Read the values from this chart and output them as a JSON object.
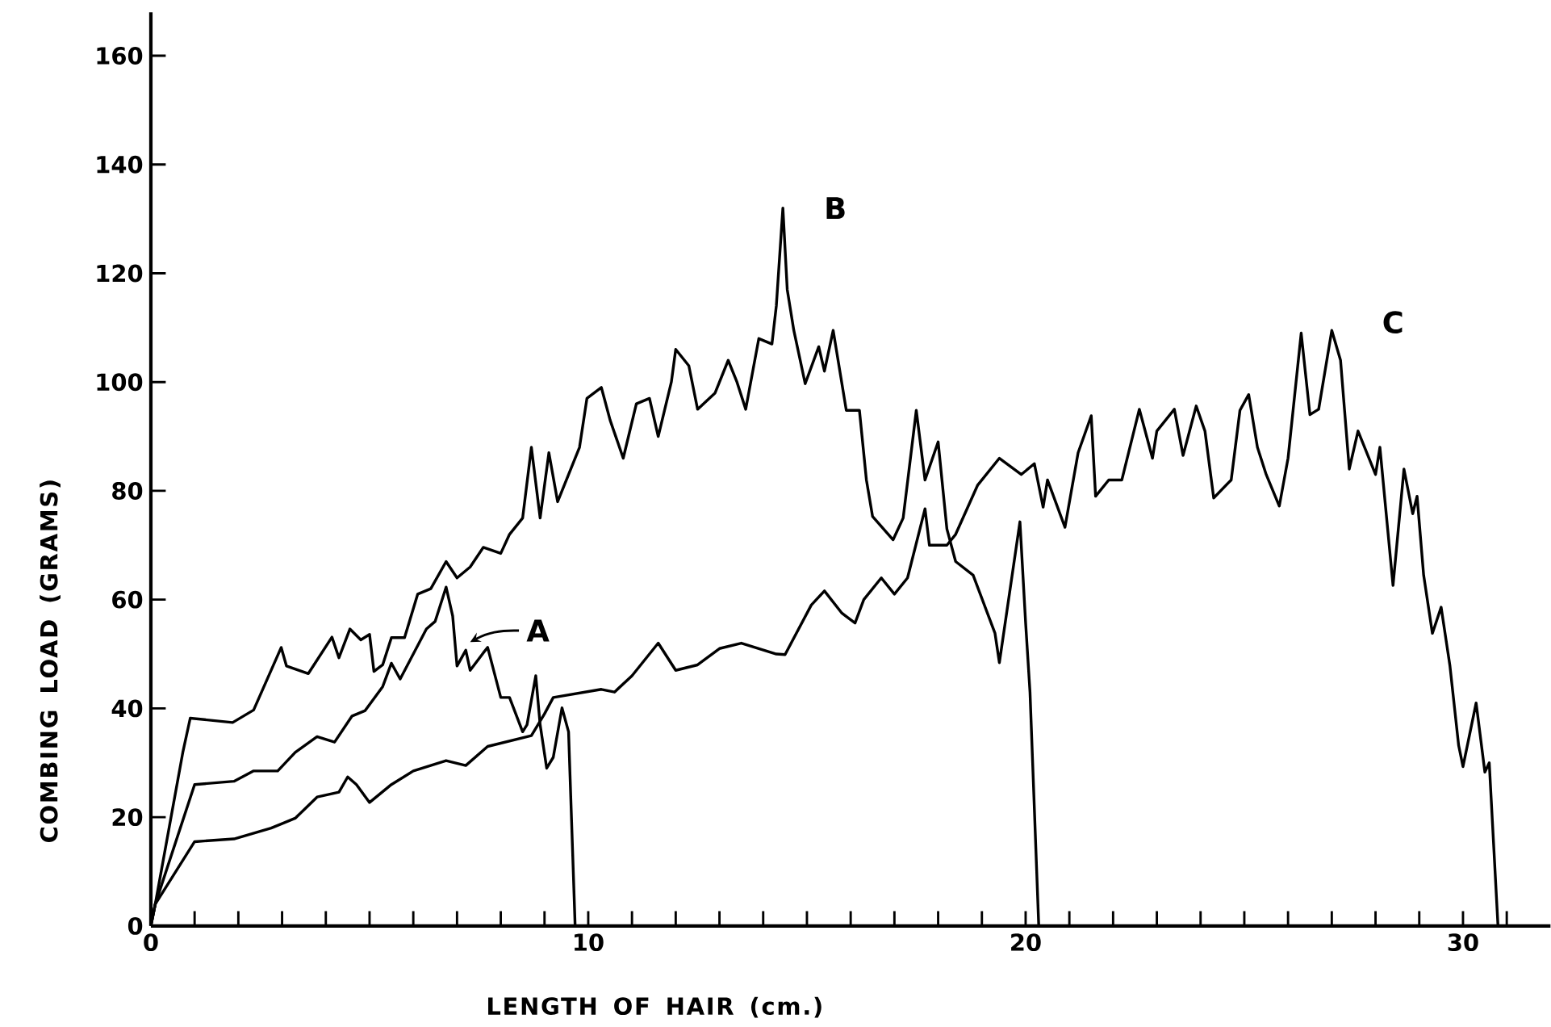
{
  "chart_data": {
    "type": "line",
    "xlabel": "LENGTH OF HAIR (cm.)",
    "ylabel": "COMBING LOAD (GRAMS)",
    "xlim": [
      0,
      32
    ],
    "ylim": [
      0,
      168
    ],
    "xticks": [
      0,
      {
        "value": 1,
        "label": null
      },
      {
        "value": 2,
        "label": null
      },
      {
        "value": 3,
        "label": null
      },
      {
        "value": 4,
        "label": null
      },
      {
        "value": 5,
        "label": null
      },
      {
        "value": 6,
        "label": null
      },
      {
        "value": 7,
        "label": null
      },
      {
        "value": 8,
        "label": null
      },
      {
        "value": 9,
        "label": null
      },
      10,
      {
        "value": 11,
        "label": null
      },
      {
        "value": 12,
        "label": null
      },
      {
        "value": 13,
        "label": null
      },
      {
        "value": 14,
        "label": null
      },
      {
        "value": 15,
        "label": null
      },
      {
        "value": 16,
        "label": null
      },
      {
        "value": 17,
        "label": null
      },
      {
        "value": 18,
        "label": null
      },
      {
        "value": 19,
        "label": null
      },
      20,
      {
        "value": 21,
        "label": null
      },
      {
        "value": 22,
        "label": null
      },
      {
        "value": 23,
        "label": null
      },
      {
        "value": 24,
        "label": null
      },
      {
        "value": 25,
        "label": null
      },
      {
        "value": 26,
        "label": null
      },
      {
        "value": 27,
        "label": null
      },
      {
        "value": 28,
        "label": null
      },
      {
        "value": 29,
        "label": null
      },
      30,
      {
        "value": 31,
        "label": null
      }
    ],
    "yticks": [
      0,
      20,
      40,
      60,
      80,
      100,
      120,
      140,
      160
    ],
    "grid": false,
    "marker": "none",
    "line_style": "solid",
    "series": [
      {
        "name": "A",
        "color": "#000000",
        "x": [
          0,
          0.1,
          1.0,
          1.9,
          2.35,
          2.9,
          3.3,
          3.8,
          4.2,
          4.6,
          4.9,
          5.3,
          5.5,
          5.7,
          6.0,
          6.3,
          6.5,
          6.75,
          6.9,
          7.0,
          7.2,
          7.3,
          7.6,
          7.7,
          8.0,
          8.2,
          8.5,
          8.6,
          8.8,
          8.9,
          9.05,
          9.2,
          9.4,
          9.55,
          9.7
        ],
        "values": [
          0,
          4,
          26,
          26.6,
          28.5,
          28.5,
          31.9,
          34.8,
          33.8,
          38.6,
          39.6,
          44,
          48.3,
          45.4,
          50,
          54.6,
          56,
          62.3,
          57,
          47.8,
          50.7,
          47,
          50.2,
          51.2,
          42,
          42,
          35.7,
          37,
          46,
          37,
          29,
          31,
          40.1,
          35.7,
          0
        ]
      },
      {
        "name": "B",
        "color": "#000000",
        "x": [
          0,
          0.1,
          0.73,
          0.9,
          1.87,
          2.35,
          2.98,
          3.1,
          3.6,
          4.14,
          4.3,
          4.55,
          4.8,
          5.0,
          5.1,
          5.3,
          5.5,
          5.8,
          6.1,
          6.4,
          6.75,
          7.0,
          7.3,
          7.6,
          8.0,
          8.2,
          8.5,
          8.7,
          8.9,
          9.1,
          9.3,
          9.8,
          9.97,
          10.3,
          10.5,
          10.8,
          11.1,
          11.4,
          11.6,
          11.9,
          12.0,
          12.3,
          12.5,
          12.9,
          13.2,
          13.4,
          13.6,
          13.9,
          14.2,
          14.3,
          14.45,
          14.55,
          14.7,
          14.96,
          15.27,
          15.4,
          15.6,
          15.9,
          16.2,
          16.36,
          16.5,
          16.97,
          17.2,
          17.5,
          17.7,
          18.0,
          18.2,
          18.4,
          18.8,
          19.3,
          19.4,
          19.87,
          20.0,
          20.1,
          20.3
        ],
        "values": [
          0,
          4,
          31.9,
          38.2,
          37.4,
          39.7,
          51.2,
          47.8,
          46.4,
          53.1,
          49.3,
          54.6,
          52.6,
          53.6,
          46.8,
          48,
          53,
          53,
          61,
          62,
          67,
          64,
          66,
          69.6,
          68.5,
          72,
          75,
          88,
          75,
          87,
          78,
          88,
          97,
          99,
          93,
          86,
          96,
          97,
          90,
          100,
          106,
          103,
          95,
          98,
          104,
          100,
          95,
          108,
          107,
          114,
          132,
          117,
          109.5,
          99.7,
          106.5,
          102,
          109.5,
          94.8,
          94.8,
          82,
          75.3,
          71,
          75,
          94.8,
          82,
          89,
          73,
          67,
          64.5,
          53.8,
          48.4,
          74.3,
          55.7,
          43,
          0
        ]
      },
      {
        "name": "C",
        "color": "#000000",
        "x": [
          0,
          0.1,
          1.0,
          1.9,
          2.75,
          3.3,
          3.8,
          4.3,
          4.5,
          4.7,
          5.0,
          5.5,
          6.0,
          6.75,
          7.2,
          7.7,
          8.2,
          8.7,
          9.0,
          9.2,
          10.3,
          10.6,
          11.0,
          11.6,
          12.0,
          12.5,
          13.0,
          13.5,
          14.3,
          14.5,
          15.1,
          15.4,
          15.8,
          16.1,
          16.3,
          16.7,
          17.0,
          17.3,
          17.7,
          17.8,
          18.2,
          18.4,
          18.9,
          19.4,
          19.9,
          20.2,
          20.4,
          20.5,
          20.9,
          21.2,
          21.5,
          21.6,
          21.9,
          22.2,
          22.6,
          22.9,
          23.0,
          23.4,
          23.6,
          23.9,
          24.1,
          24.3,
          24.7,
          24.9,
          25.1,
          25.3,
          25.5,
          25.8,
          26.0,
          26.3,
          26.5,
          26.7,
          27.0,
          27.2,
          27.4,
          27.6,
          28.0,
          28.1,
          28.4,
          28.65,
          28.85,
          28.95,
          29.1,
          29.3,
          29.5,
          29.7,
          29.9,
          30.0,
          30.3,
          30.5,
          30.6,
          30.8
        ],
        "values": [
          0,
          4,
          15.5,
          16,
          18,
          19.8,
          23.7,
          24.6,
          27.4,
          26,
          22.7,
          26,
          28.5,
          30.4,
          29.5,
          33,
          34,
          35,
          39,
          42,
          43.5,
          43,
          46,
          52,
          47,
          48,
          51,
          52,
          50,
          49.9,
          59,
          61.6,
          57.5,
          55.7,
          60,
          64,
          61,
          64,
          76.7,
          70,
          70,
          72,
          81,
          86,
          83,
          85,
          77,
          82,
          73.3,
          87,
          93.8,
          79,
          82,
          82,
          95,
          86,
          91,
          95,
          86.5,
          95.6,
          91,
          78.7,
          82,
          94.8,
          97.7,
          88,
          83,
          77.2,
          86,
          109,
          94,
          95,
          109.5,
          104,
          84,
          91,
          83,
          88,
          62.6,
          84,
          75.8,
          79,
          64.5,
          53.8,
          58.6,
          47.9,
          33.2,
          29.3,
          41,
          28.3,
          30,
          0
        ]
      }
    ]
  }
}
